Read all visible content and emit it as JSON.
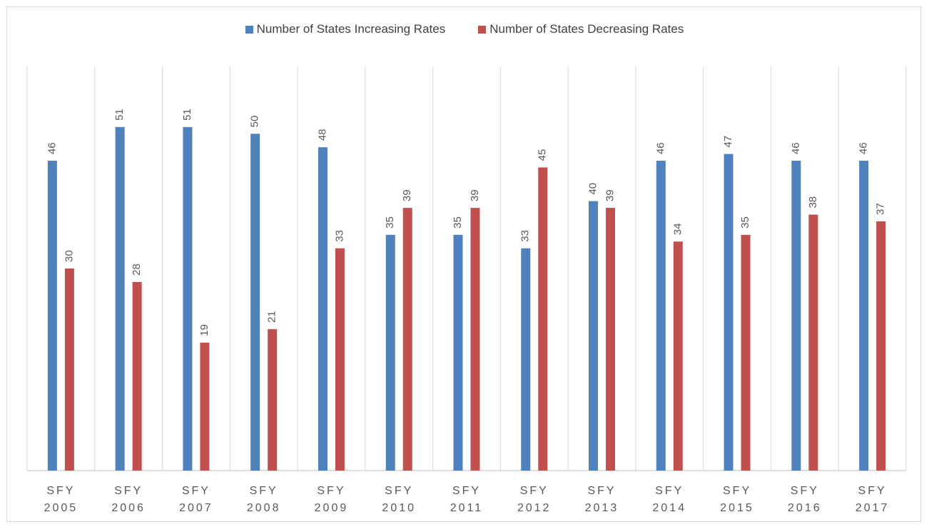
{
  "chart_data": {
    "type": "bar",
    "categories": [
      "SFY 2005",
      "SFY 2006",
      "SFY 2007",
      "SFY 2008",
      "SFY 2009",
      "SFY 2010",
      "SFY 2011",
      "SFY 2012",
      "SFY 2013",
      "SFY 2014",
      "SFY 2015",
      "SFY 2016",
      "SFY 2017"
    ],
    "series": [
      {
        "name": "Number of States Increasing Rates",
        "color": "#4f81bd",
        "values": [
          46,
          51,
          51,
          50,
          48,
          35,
          35,
          33,
          40,
          46,
          47,
          46,
          46
        ]
      },
      {
        "name": "Number of States Decreasing Rates",
        "color": "#c0504d",
        "values": [
          30,
          28,
          19,
          21,
          33,
          39,
          39,
          45,
          39,
          34,
          35,
          38,
          37
        ]
      }
    ],
    "ylim": [
      0,
      60
    ],
    "legend": "top"
  }
}
